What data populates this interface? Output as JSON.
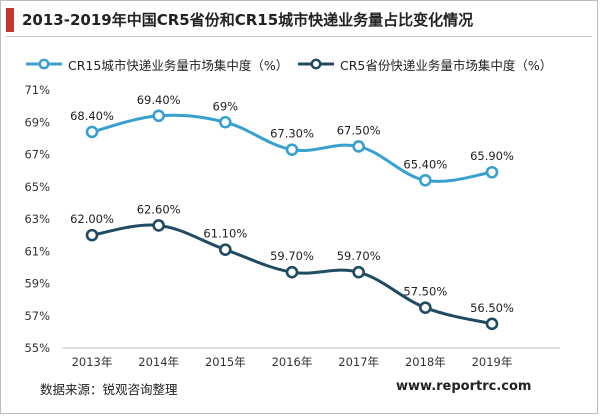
{
  "title": "2013-2019年中国CR5省份和CR15城市快递业务量占比变化情况",
  "source": "数据来源：锐观咨询整理",
  "website": "www.reportrc.com",
  "colors": {
    "accent": "#c0392b",
    "cr15": "#37a0d0",
    "cr5": "#1f4b63"
  },
  "chart_data": {
    "type": "line",
    "title": "2013-2019年中国CR5省份和CR15城市快递业务量占比变化情况",
    "x": [
      "2013年",
      "2014年",
      "2015年",
      "2016年",
      "2017年",
      "2018年",
      "2019年"
    ],
    "ylim": [
      55,
      71
    ],
    "yticks": [
      55,
      57,
      59,
      61,
      63,
      65,
      67,
      69,
      71
    ],
    "ytick_labels": [
      "55%",
      "57%",
      "59%",
      "61%",
      "63%",
      "65%",
      "67%",
      "69%",
      "71%"
    ],
    "grid": false,
    "legend": "top",
    "series": [
      {
        "name": "CR15城市快递业务量市场集中度（%）",
        "color": "#37a0d0",
        "values": [
          68.4,
          69.4,
          69.0,
          67.3,
          67.5,
          65.4,
          65.9
        ],
        "labels": [
          "68.40%",
          "69.40%",
          "69%",
          "67.30%",
          "67.50%",
          "65.40%",
          "65.90%"
        ]
      },
      {
        "name": "CR5省份快递业务量市场集中度（%）",
        "color": "#1f4b63",
        "values": [
          62.0,
          62.6,
          61.1,
          59.7,
          59.7,
          57.5,
          56.5
        ],
        "labels": [
          "62.00%",
          "62.60%",
          "61.10%",
          "59.70%",
          "59.70%",
          "57.50%",
          "56.50%"
        ]
      }
    ]
  }
}
